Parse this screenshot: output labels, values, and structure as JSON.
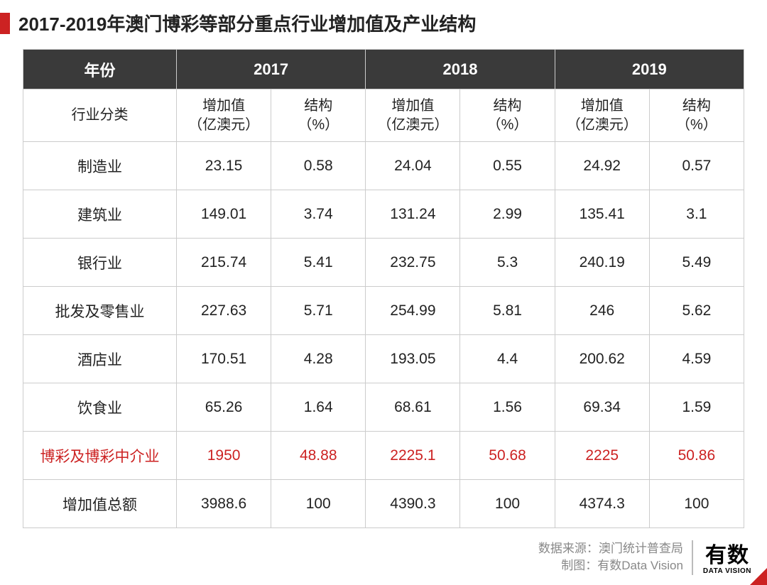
{
  "title": "2017-2019年澳门博彩等部分重点行业增加值及产业结构",
  "accent_color": "#cc2222",
  "header_bg": "#3a3a3a",
  "border_color": "#cccccc",
  "highlight_color": "#cc2222",
  "table": {
    "year_label": "年份",
    "category_label": "行业分类",
    "sub_value": "增加值\n（亿澳元）",
    "sub_pct": "结构\n（%）",
    "years": [
      "2017",
      "2018",
      "2019"
    ],
    "rows": [
      {
        "cat": "制造业",
        "v": [
          "23.15",
          "0.58",
          "24.04",
          "0.55",
          "24.92",
          "0.57"
        ],
        "hl": false
      },
      {
        "cat": "建筑业",
        "v": [
          "149.01",
          "3.74",
          "131.24",
          "2.99",
          "135.41",
          "3.1"
        ],
        "hl": false
      },
      {
        "cat": "银行业",
        "v": [
          "215.74",
          "5.41",
          "232.75",
          "5.3",
          "240.19",
          "5.49"
        ],
        "hl": false
      },
      {
        "cat": "批发及零售业",
        "v": [
          "227.63",
          "5.71",
          "254.99",
          "5.81",
          "246",
          "5.62"
        ],
        "hl": false
      },
      {
        "cat": "酒店业",
        "v": [
          "170.51",
          "4.28",
          "193.05",
          "4.4",
          "200.62",
          "4.59"
        ],
        "hl": false
      },
      {
        "cat": "饮食业",
        "v": [
          "65.26",
          "1.64",
          "68.61",
          "1.56",
          "69.34",
          "1.59"
        ],
        "hl": false
      },
      {
        "cat": "博彩及博彩中介业",
        "v": [
          "1950",
          "48.88",
          "2225.1",
          "50.68",
          "2225",
          "50.86"
        ],
        "hl": true
      },
      {
        "cat": "增加值总额",
        "v": [
          "3988.6",
          "100",
          "4390.3",
          "100",
          "4374.3",
          "100"
        ],
        "hl": false
      }
    ]
  },
  "footer": {
    "source_label": "数据来源：",
    "source_value": "澳门统计普查局",
    "credit_label": "制图：",
    "credit_value": "有数Data Vision",
    "logo_cn": "有数",
    "logo_en": "DATA VISION"
  }
}
